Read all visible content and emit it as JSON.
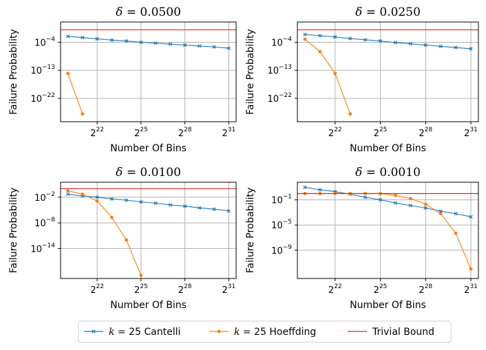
{
  "figure": {
    "legend": {
      "entries": [
        {
          "k": "k",
          "eq": " = 25",
          "name": "Cantelli",
          "color": "#1f77b4",
          "marker": "x"
        },
        {
          "k": "k",
          "eq": " = 25",
          "name": "Hoeffding",
          "color": "#ff7f0e",
          "marker": "o"
        },
        {
          "k": "",
          "eq": "",
          "name": "Trivial Bound",
          "color": "#d62728",
          "marker": "none"
        }
      ]
    }
  },
  "chart_data": [
    {
      "type": "line",
      "title_symbol": "δ",
      "title_value": " = 0.0500",
      "xlabel": "Number Of Bins",
      "ylabel": "Failure Probability",
      "xscale": "log2",
      "yscale": "log10",
      "xlim": [
        19.5,
        31.5
      ],
      "ylim": [
        -29.5,
        2.5
      ],
      "x_exponents": [
        20,
        21,
        22,
        23,
        24,
        25,
        26,
        27,
        28,
        29,
        30,
        31
      ],
      "xticks": [
        22,
        25,
        28,
        31
      ],
      "yticks": [
        -4,
        -13,
        -22
      ],
      "grid": true,
      "legend_position": "bottom-center",
      "series": [
        {
          "name": "Cantelli",
          "values_log10": [
            -2.1,
            -2.5,
            -2.9,
            -3.3,
            -3.6,
            -4.0,
            -4.3,
            -4.6,
            -4.9,
            -5.2,
            -5.5,
            -5.9
          ]
        },
        {
          "name": "Hoeffding",
          "values_log10": [
            -14.0,
            -27.0,
            null,
            null,
            null,
            null,
            null,
            null,
            null,
            null,
            null,
            null
          ]
        },
        {
          "name": "Trivial Bound",
          "constant_log10": 0
        }
      ]
    },
    {
      "type": "line",
      "title_symbol": "δ",
      "title_value": " = 0.0250",
      "xlabel": "Number Of Bins",
      "ylabel": "Failure Probability",
      "xscale": "log2",
      "yscale": "log10",
      "xlim": [
        19.5,
        31.5
      ],
      "ylim": [
        -29.5,
        2.5
      ],
      "x_exponents": [
        20,
        21,
        22,
        23,
        24,
        25,
        26,
        27,
        28,
        29,
        30,
        31
      ],
      "xticks": [
        22,
        25,
        28,
        31
      ],
      "yticks": [
        -4,
        -13,
        -22
      ],
      "grid": true,
      "series": [
        {
          "name": "Cantelli",
          "values_log10": [
            -1.5,
            -1.9,
            -2.3,
            -2.8,
            -3.2,
            -3.6,
            -4.1,
            -4.5,
            -4.9,
            -5.3,
            -5.7,
            -6.1
          ]
        },
        {
          "name": "Hoeffding",
          "values_log10": [
            -3.0,
            -7.0,
            -14.0,
            -27.0,
            null,
            null,
            null,
            null,
            null,
            null,
            null,
            null
          ]
        },
        {
          "name": "Trivial Bound",
          "constant_log10": 0
        }
      ]
    },
    {
      "type": "line",
      "title_symbol": "δ",
      "title_value": " = 0.0100",
      "xlabel": "Number Of Bins",
      "ylabel": "Failure Probability",
      "xscale": "log2",
      "yscale": "log10",
      "xlim": [
        19.5,
        31.5
      ],
      "ylim": [
        -21,
        1.5
      ],
      "x_exponents": [
        20,
        21,
        22,
        23,
        24,
        25,
        26,
        27,
        28,
        29,
        30,
        31
      ],
      "xticks": [
        22,
        25,
        28,
        31
      ],
      "yticks": [
        -2,
        -8,
        -14
      ],
      "grid": true,
      "series": [
        {
          "name": "Cantelli",
          "values_log10": [
            -1.3,
            -1.7,
            -2.0,
            -2.4,
            -2.7,
            -3.1,
            -3.4,
            -3.8,
            -4.1,
            -4.5,
            -4.8,
            -5.2
          ]
        },
        {
          "name": "Hoeffding",
          "values_log10": [
            -0.5,
            -1.3,
            -2.9,
            -6.7,
            -12.0,
            -20.3,
            null,
            null,
            null,
            null,
            null,
            null
          ]
        },
        {
          "name": "Trivial Bound",
          "constant_log10": 0
        }
      ]
    },
    {
      "type": "line",
      "title_symbol": "δ",
      "title_value": " = 0.0010",
      "xlabel": "Number Of Bins",
      "ylabel": "Failure Probability",
      "xscale": "log2",
      "yscale": "log10",
      "xlim": [
        19.5,
        31.5
      ],
      "ylim": [
        -13.5,
        1.8
      ],
      "x_exponents": [
        20,
        21,
        22,
        23,
        24,
        25,
        26,
        27,
        28,
        29,
        30,
        31
      ],
      "xticks": [
        22,
        25,
        28,
        31
      ],
      "yticks": [
        -1,
        -5,
        -9
      ],
      "grid": true,
      "series": [
        {
          "name": "Cantelli",
          "values_log10": [
            1.0,
            0.6,
            0.3,
            -0.1,
            -0.6,
            -1.0,
            -1.5,
            -1.9,
            -2.3,
            -2.8,
            -3.2,
            -3.7
          ]
        },
        {
          "name": "Hoeffding",
          "values_log10": [
            0.0,
            0.0,
            0.0,
            0.0,
            0.0,
            0.0,
            -0.3,
            -0.8,
            -1.7,
            -3.2,
            -6.3,
            -12.0
          ]
        },
        {
          "name": "Trivial Bound",
          "constant_log10": 0
        }
      ]
    }
  ]
}
